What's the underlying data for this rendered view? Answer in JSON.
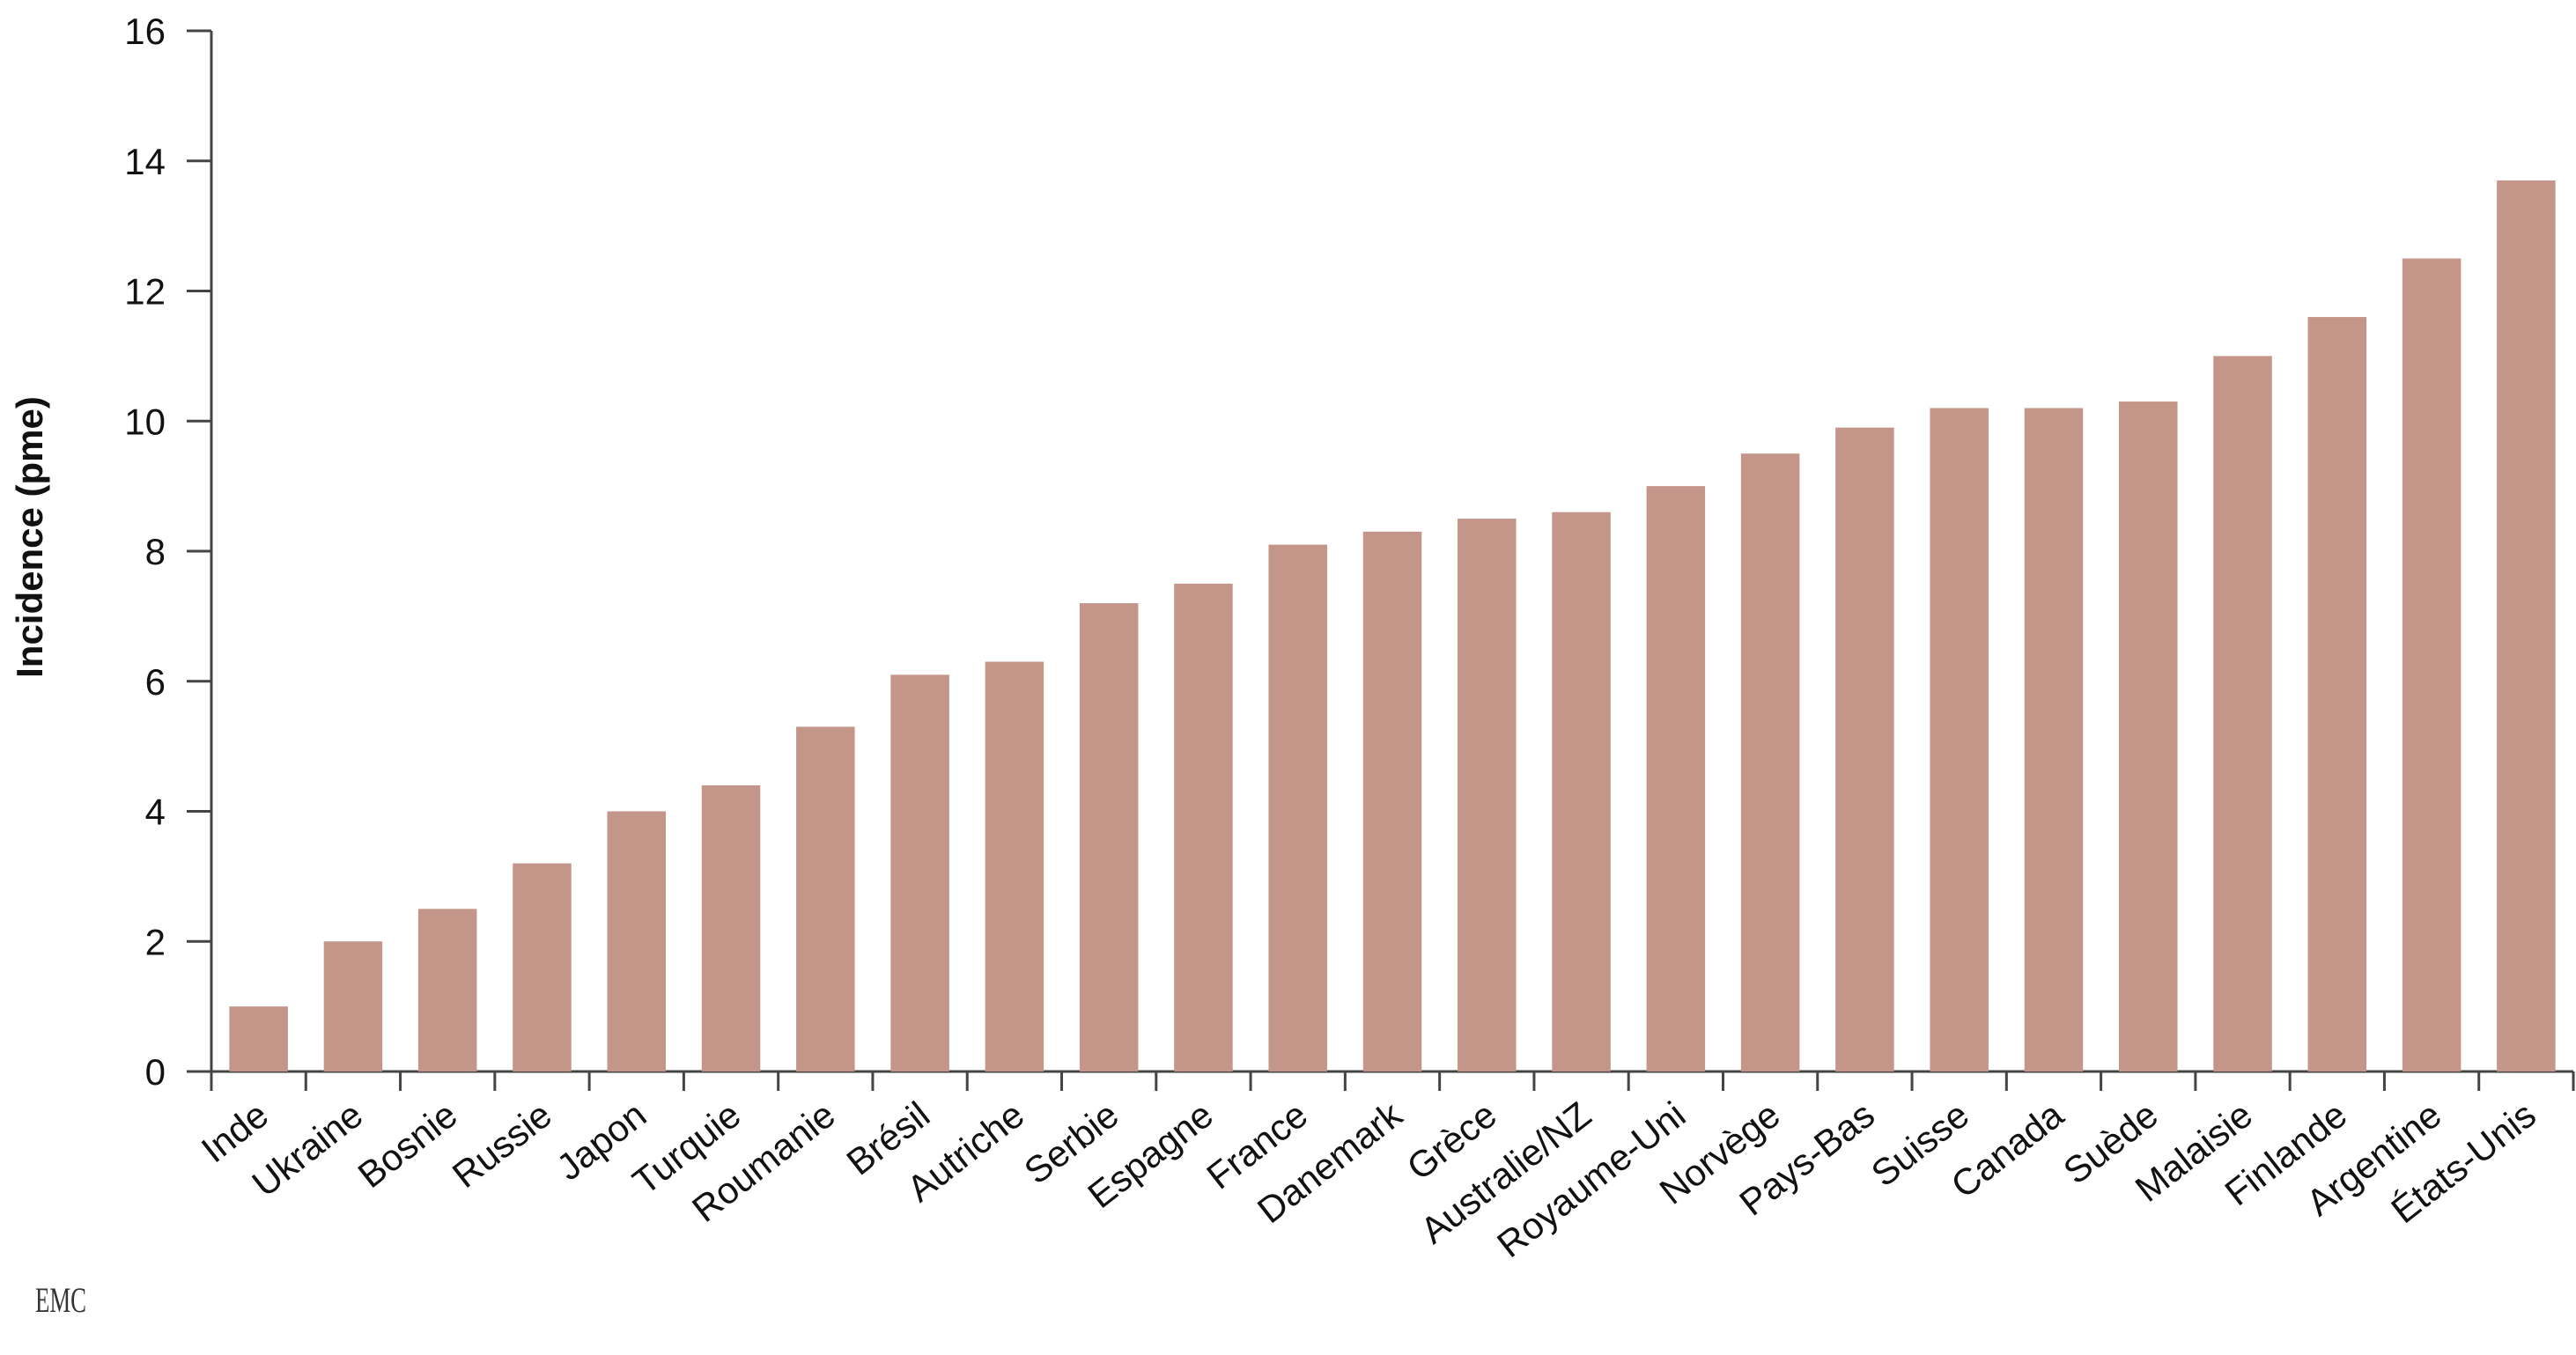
{
  "chart_data": {
    "type": "bar",
    "title": "",
    "xlabel": "",
    "ylabel": "Incidence (pme)",
    "ylim": [
      0,
      16
    ],
    "yticks": [
      0,
      2,
      4,
      6,
      8,
      10,
      12,
      14,
      16
    ],
    "grid": false,
    "legend": "none",
    "bar_color": "#c4968a",
    "categories": [
      "Inde",
      "Ukraine",
      "Bosnie",
      "Russie",
      "Japon",
      "Turquie",
      "Roumanie",
      "Brésil",
      "Autriche",
      "Serbie",
      "Espagne",
      "France",
      "Danemark",
      "Grèce",
      "Australie/NZ",
      "Royaume-Uni",
      "Norvège",
      "Pays-Bas",
      "Suisse",
      "Canada",
      "Suède",
      "Malaisie",
      "Finlande",
      "Argentine",
      "États-Unis"
    ],
    "values": [
      1.0,
      2.0,
      2.5,
      3.2,
      4.0,
      4.4,
      5.3,
      6.1,
      6.3,
      7.2,
      7.5,
      8.1,
      8.3,
      8.5,
      8.6,
      9.0,
      9.5,
      9.9,
      10.2,
      10.2,
      10.3,
      11.0,
      11.6,
      12.5,
      13.7
    ]
  },
  "logo": {
    "text": "EMC"
  }
}
